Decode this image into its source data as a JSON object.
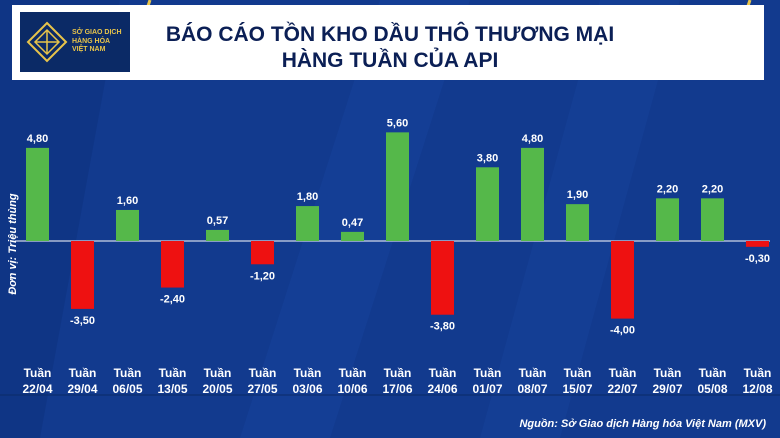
{
  "header": {
    "title_line1": "BÁO CÁO TỒN KHO DẦU THÔ THƯƠNG MẠI",
    "title_line2": "HÀNG TUẦN CỦA API",
    "logo_text": "SỞ GIAO DỊCH\nHÀNG HÓA\nVIỆT NAM"
  },
  "unit_label": "Đơn vị: Triệu thùng",
  "source": "Nguồn: Sở Giao dịch Hàng hóa Việt Nam (MXV)",
  "colors": {
    "positive": "#55b84a",
    "negative": "#ee1111",
    "background": "#123a8e"
  },
  "chart_data": {
    "type": "bar",
    "title": "BÁO CÁO TỒN KHO DẦU THÔ THƯƠNG MẠI HÀNG TUẦN CỦA API",
    "ylabel": "Đơn vị: Triệu thùng",
    "categories": [
      [
        "Tuần",
        "22/04"
      ],
      [
        "Tuần",
        "29/04"
      ],
      [
        "Tuần",
        "06/05"
      ],
      [
        "Tuần",
        "13/05"
      ],
      [
        "Tuần",
        "20/05"
      ],
      [
        "Tuần",
        "27/05"
      ],
      [
        "Tuần",
        "03/06"
      ],
      [
        "Tuần",
        "10/06"
      ],
      [
        "Tuần",
        "17/06"
      ],
      [
        "Tuần",
        "24/06"
      ],
      [
        "Tuần",
        "01/07"
      ],
      [
        "Tuần",
        "08/07"
      ],
      [
        "Tuần",
        "15/07"
      ],
      [
        "Tuần",
        "22/07"
      ],
      [
        "Tuần",
        "29/07"
      ],
      [
        "Tuần",
        "05/08"
      ],
      [
        "Tuần",
        "12/08"
      ]
    ],
    "values": [
      4.8,
      -3.5,
      1.6,
      -2.4,
      0.57,
      -1.2,
      1.8,
      0.47,
      5.6,
      -3.8,
      3.8,
      4.8,
      1.9,
      -4.0,
      2.2,
      2.2,
      -0.3
    ],
    "labels": [
      "4,80",
      "-3,50",
      "1,60",
      "-2,40",
      "0,57",
      "-1,20",
      "1,80",
      "0,47",
      "5,60",
      "-3,80",
      "3,80",
      "4,80",
      "1,90",
      "-4,00",
      "2,20",
      "2,20",
      "-0,30"
    ],
    "ylim": [
      -4.5,
      6
    ],
    "grid": false,
    "legend": "none"
  }
}
